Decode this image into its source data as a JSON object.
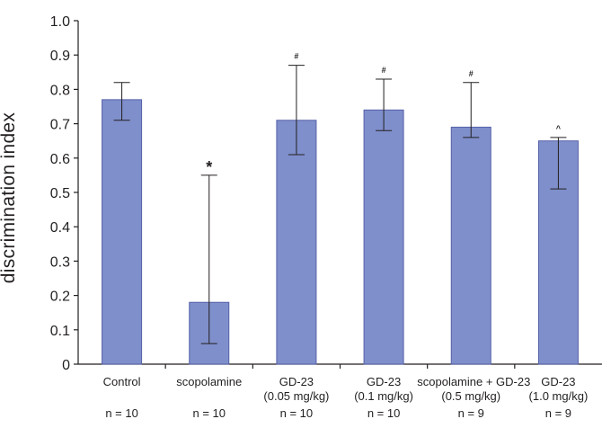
{
  "chart_data": {
    "type": "bar",
    "ylabel": "discrimination index",
    "xlabel": "",
    "title": "",
    "ylim": [
      0,
      1.0
    ],
    "yticks": [
      "0",
      "0.1",
      "0.2",
      "0.3",
      "0.4",
      "0.5",
      "0.6",
      "0.7",
      "0.8",
      "0.9",
      "1.0"
    ],
    "grid": false,
    "bar_color": "#7f8fcb",
    "bar_edge_color": "#5560a8",
    "categories": [
      {
        "label": "Control",
        "label2": "",
        "n": "n = 10"
      },
      {
        "label": "scopolamine",
        "label2": "",
        "n": "n = 10"
      },
      {
        "label": "GD-23",
        "label2": "(0.05 mg/kg)",
        "n": "n = 10"
      },
      {
        "label": "GD-23",
        "label2": "(0.1 mg/kg)",
        "n": "n = 10"
      },
      {
        "label": "scopolamine + GD-23",
        "label2": "(0.5 mg/kg)",
        "n": "n = 9"
      },
      {
        "label": "GD-23",
        "label2": "(1.0 mg/kg)",
        "n": "n = 9"
      }
    ],
    "values": [
      0.77,
      0.18,
      0.71,
      0.74,
      0.69,
      0.65
    ],
    "error_low": [
      0.71,
      0.06,
      0.61,
      0.68,
      0.66,
      0.51
    ],
    "error_high": [
      0.82,
      0.55,
      0.87,
      0.83,
      0.82,
      0.66
    ],
    "annotations": [
      "",
      "*",
      "#",
      "#",
      "#",
      "^"
    ]
  }
}
